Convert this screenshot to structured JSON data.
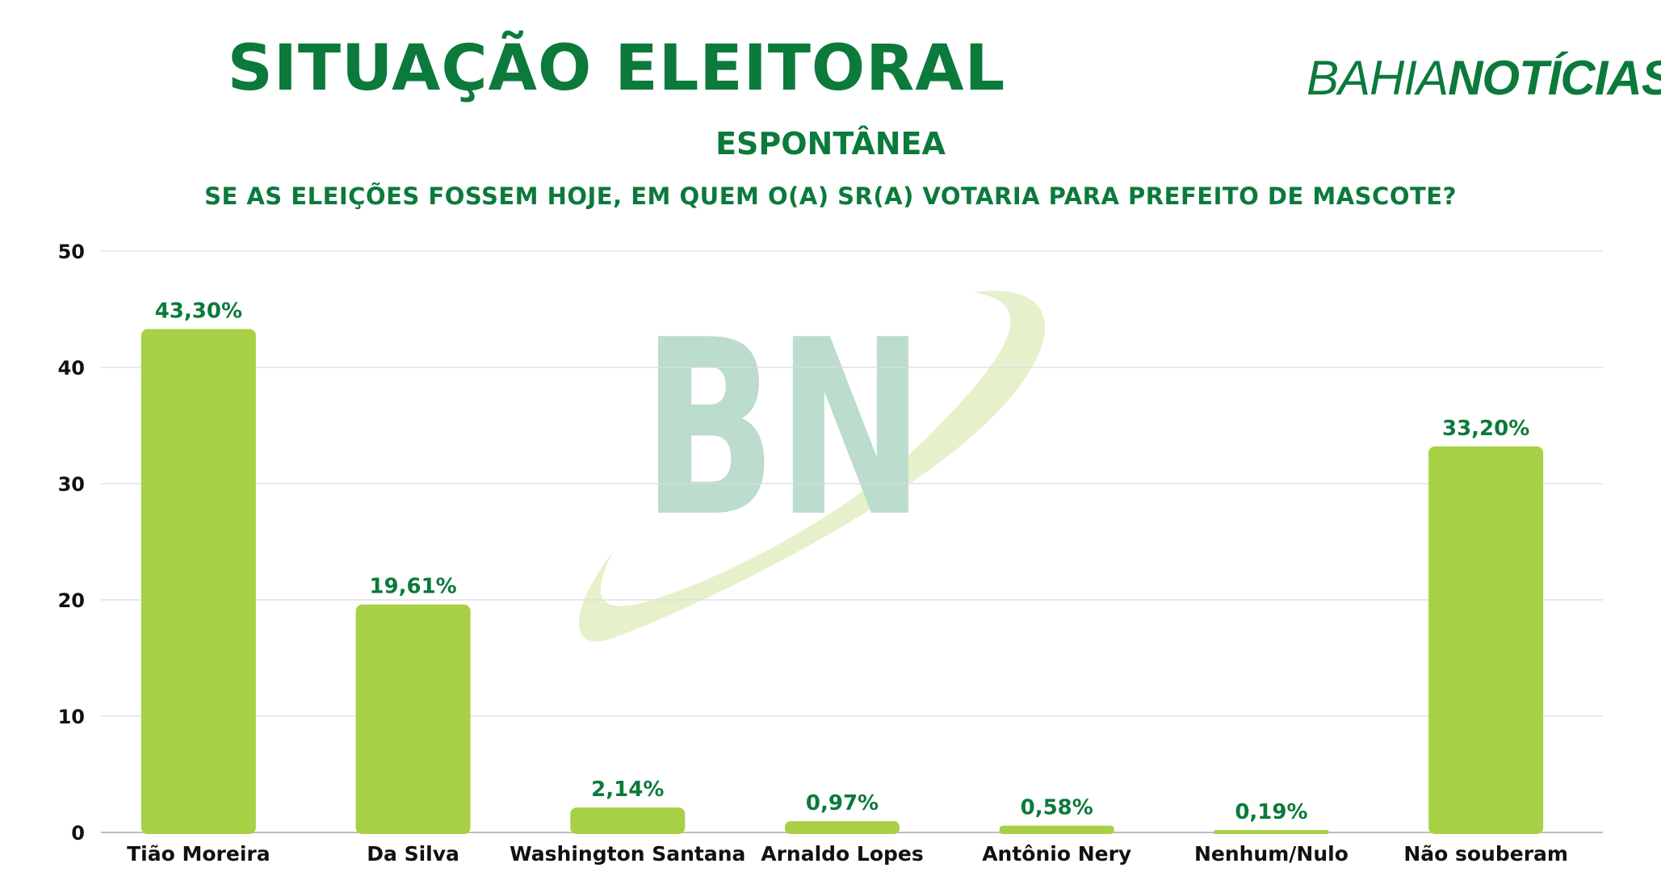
{
  "header": {
    "title": "SITUAÇÃO ELEITORAL",
    "subtitle": "ESPONTÂNEA",
    "question": "SE AS ELEIÇÕES FOSSEM HOJE, EM QUEM O(A) SR(A) VOTARIA PARA PREFEITO DE MASCOTE?",
    "brand_part1": "BAHIA",
    "brand_part2": "NOTÍCIAS",
    "watermark": "BN"
  },
  "colors": {
    "brand_green": "#0b7a3b",
    "bar_fill": "#a8d045",
    "watermark_green": "#bcdccd",
    "watermark_swoosh": "#e6f1cc"
  },
  "chart_data": {
    "type": "bar",
    "categories": [
      "Tião Moreira",
      "Da Silva",
      "Washington Santana",
      "Arnaldo Lopes",
      "Antônio Nery",
      "Nenhum/Nulo",
      "Não souberam"
    ],
    "values": [
      43.3,
      19.61,
      2.14,
      0.97,
      0.58,
      0.19,
      33.2
    ],
    "data_labels": [
      "43,30%",
      "19,61%",
      "2,14%",
      "0,97%",
      "0,58%",
      "0,19%",
      "33,20%"
    ],
    "ylim": [
      0,
      50
    ],
    "yticks": [
      0,
      10,
      20,
      30,
      40,
      50
    ],
    "grid": true,
    "legend": "none"
  }
}
